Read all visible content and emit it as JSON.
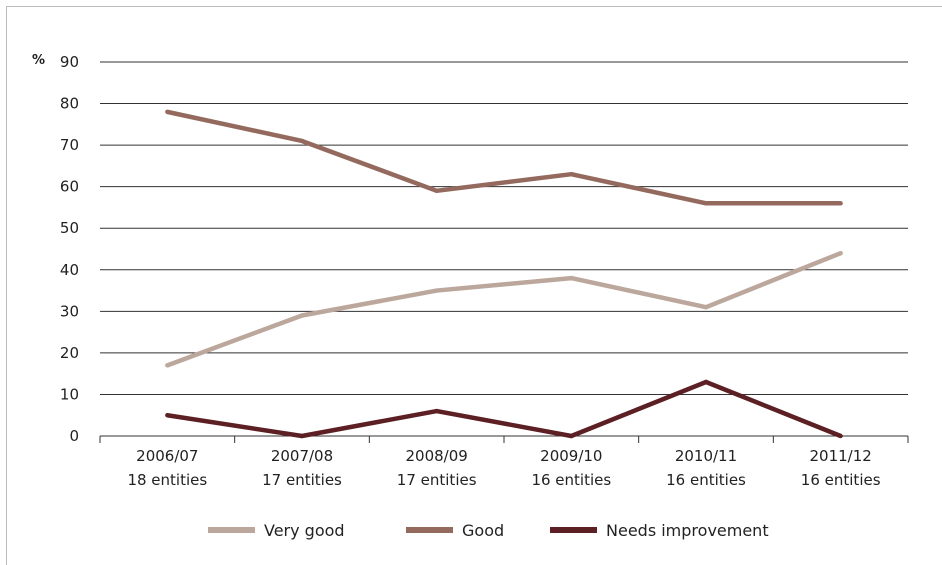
{
  "chart_data": {
    "type": "line",
    "ylabel": "%",
    "ylim": [
      0,
      90
    ],
    "yticks": [
      "0",
      "10",
      "20",
      "30",
      "40",
      "50",
      "60",
      "70",
      "80",
      "90"
    ],
    "categories": [
      {
        "year": "2006/07",
        "entities": "18 entities"
      },
      {
        "year": "2007/08",
        "entities": "17 entities"
      },
      {
        "year": "2008/09",
        "entities": "17 entities"
      },
      {
        "year": "2009/10",
        "entities": "16 entities"
      },
      {
        "year": "2010/11",
        "entities": "16 entities"
      },
      {
        "year": "2011/12",
        "entities": "16 entities"
      }
    ],
    "series": [
      {
        "name": "Very good",
        "color": "#bca79c",
        "values": [
          17,
          29,
          35,
          38,
          31,
          44
        ]
      },
      {
        "name": "Good",
        "color": "#946a5f",
        "values": [
          78,
          71,
          59,
          63,
          56,
          56
        ]
      },
      {
        "name": "Needs improvement",
        "color": "#5c1f24",
        "values": [
          5,
          0,
          6,
          0,
          13,
          0
        ]
      }
    ],
    "grid": true,
    "legend_position": "bottom"
  }
}
